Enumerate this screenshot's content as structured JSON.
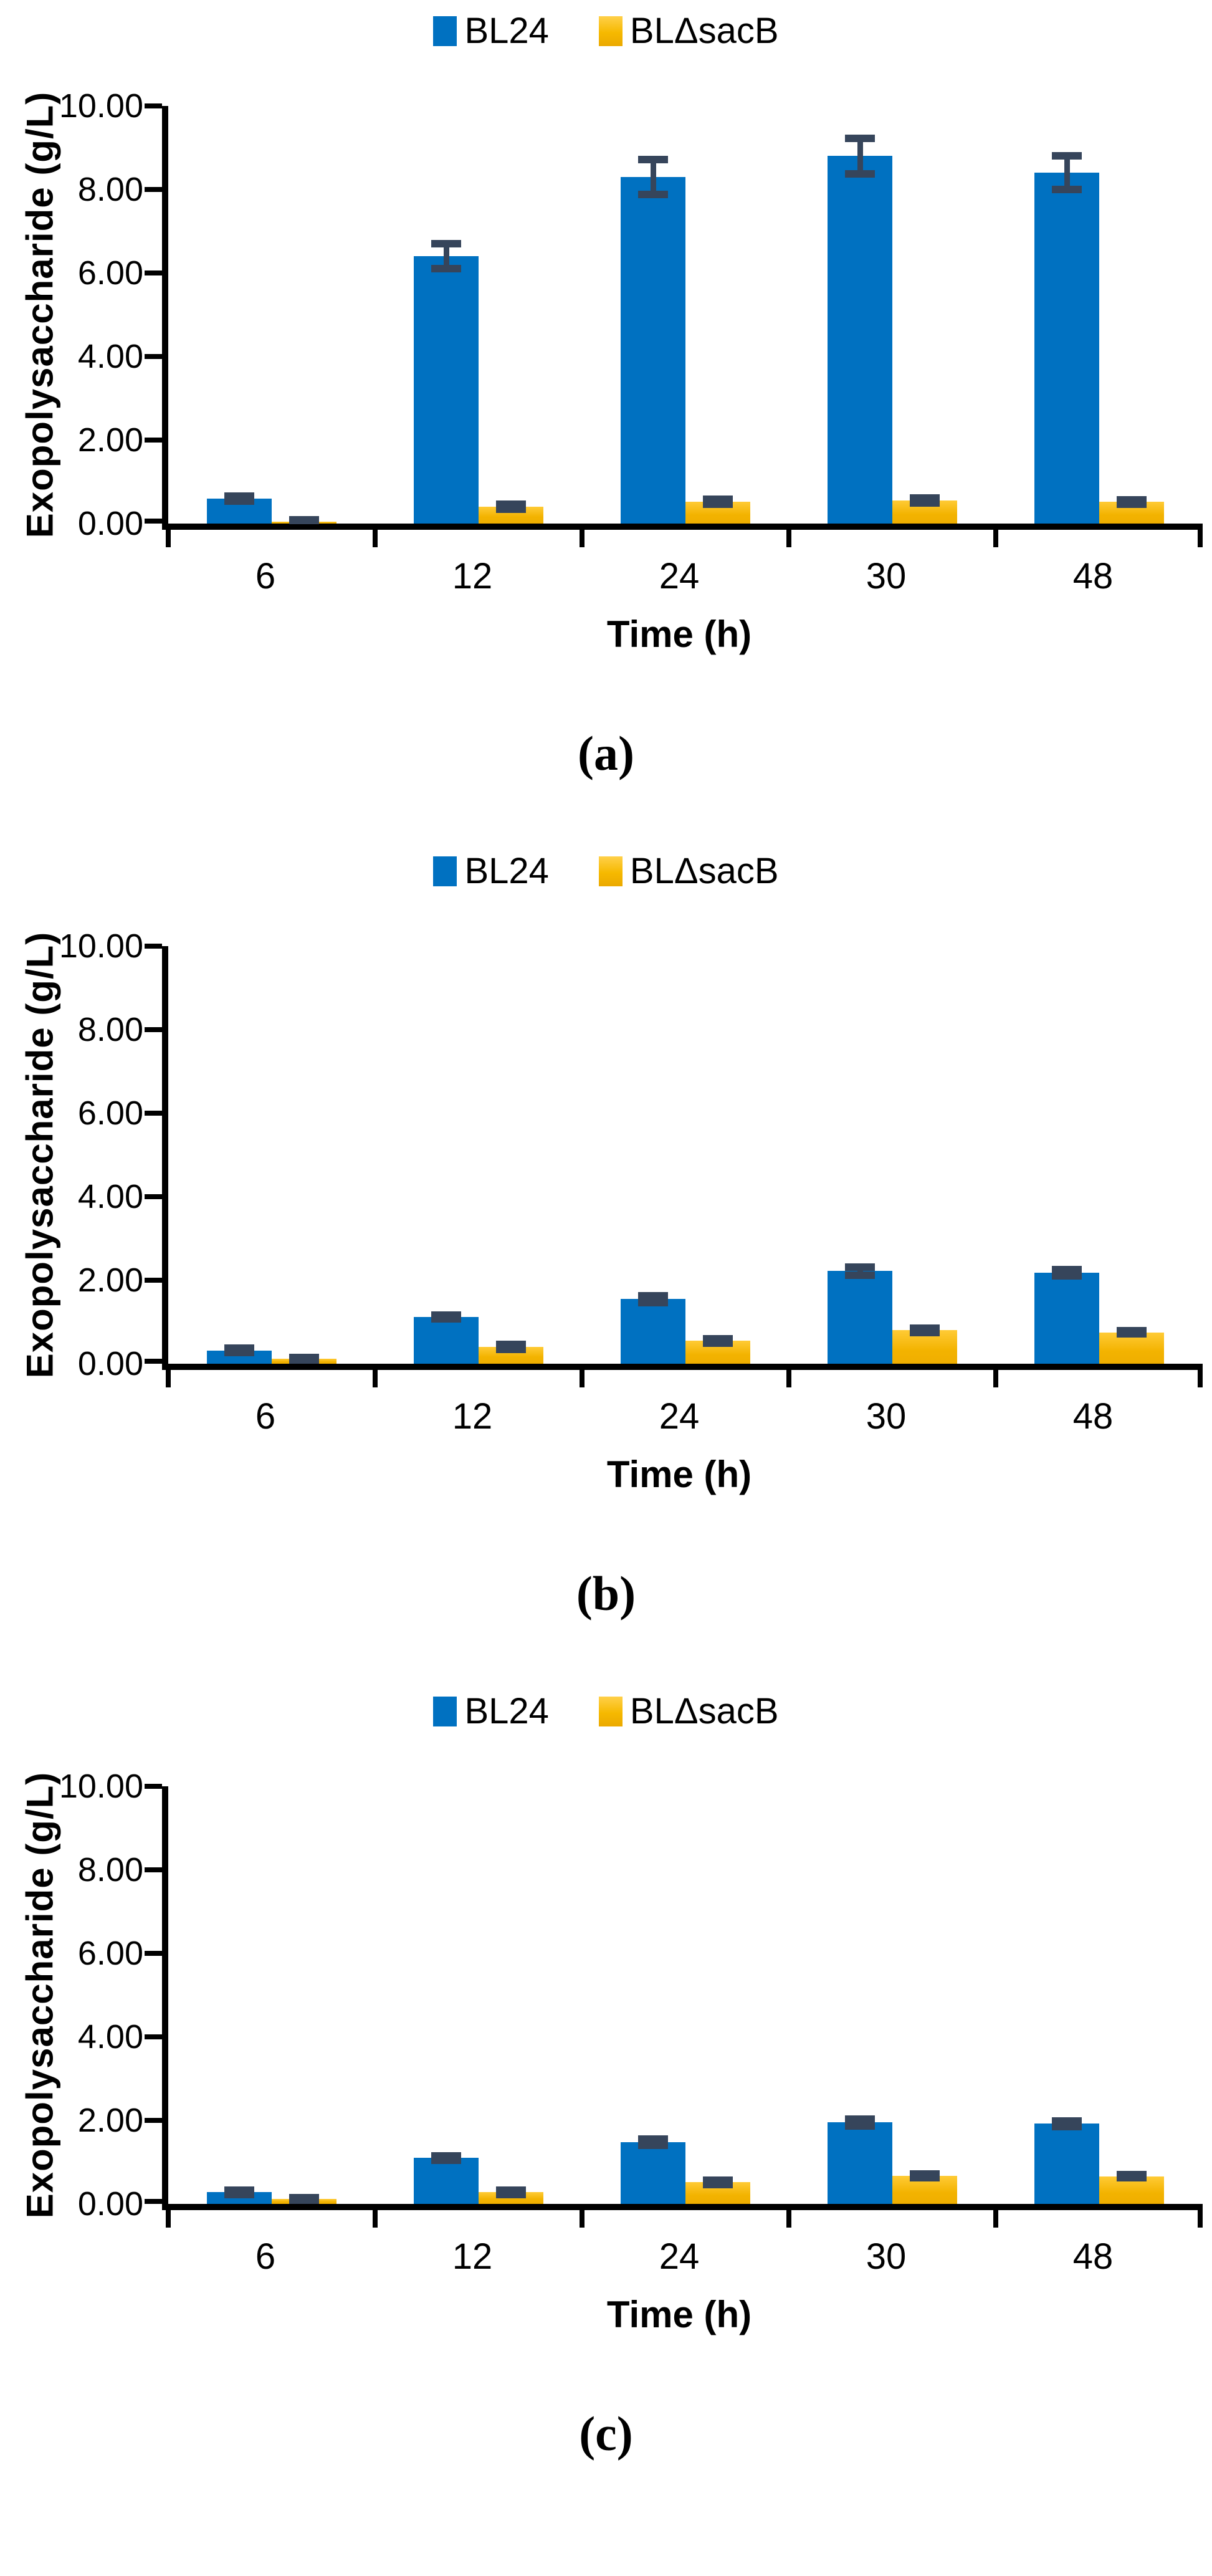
{
  "figure_title": "Exopolysaccharide production of BL24 and BLΔsacB over time (three panels)",
  "colors": {
    "bl24_blue": "#0071C1",
    "sacb_yellow_top": "#FFCB36",
    "sacb_yellow_bottom": "#EFAE00",
    "error_bar": "#36455B",
    "axis": "#000000",
    "background": "#FFFFFF"
  },
  "chart_data": [
    {
      "id": "a",
      "type": "bar",
      "caption": "(a)",
      "xlabel": "Time (h)",
      "ylabel": "Exopolysaccharide (g/L)",
      "categories": [
        "6",
        "12",
        "24",
        "30",
        "48"
      ],
      "y_ticks": [
        "10.00",
        "8.00",
        "6.00",
        "4.00",
        "2.00",
        "0.00"
      ],
      "ylim": [
        0,
        10
      ],
      "grid": false,
      "legend_position": "top-center",
      "series": [
        {
          "name": "BL24",
          "values": [
            0.6,
            6.4,
            8.3,
            8.8,
            8.4
          ],
          "errors": [
            0.06,
            0.3,
            0.42,
            0.42,
            0.4
          ]
        },
        {
          "name": "BLΔsacB",
          "values": [
            0.04,
            0.4,
            0.52,
            0.55,
            0.52
          ],
          "errors": [
            0.04,
            0.06,
            0.06,
            0.06,
            0.05
          ]
        }
      ]
    },
    {
      "id": "b",
      "type": "bar",
      "caption": "(b)",
      "xlabel": "Time (h)",
      "ylabel": "Exopolysaccharide (g/L)",
      "categories": [
        "6",
        "12",
        "24",
        "30",
        "48"
      ],
      "y_ticks": [
        "10.00",
        "8.00",
        "6.00",
        "4.00",
        "2.00",
        "0.00"
      ],
      "ylim": [
        0,
        10
      ],
      "grid": false,
      "legend_position": "top-center",
      "series": [
        {
          "name": "BL24",
          "values": [
            0.32,
            1.12,
            1.55,
            2.22,
            2.18
          ],
          "errors": [
            0.05,
            0.05,
            0.08,
            0.1,
            0.08
          ]
        },
        {
          "name": "BLΔsacB",
          "values": [
            0.12,
            0.4,
            0.55,
            0.8,
            0.75
          ],
          "errors": [
            0.03,
            0.06,
            0.05,
            0.05,
            0.04
          ]
        }
      ]
    },
    {
      "id": "c",
      "type": "bar",
      "caption": "(c)",
      "xlabel": "Time (h)",
      "ylabel": "Exopolysaccharide (g/L)",
      "categories": [
        "6",
        "12",
        "24",
        "30",
        "48"
      ],
      "y_ticks": [
        "10.00",
        "8.00",
        "6.00",
        "4.00",
        "2.00",
        "0.00"
      ],
      "ylim": [
        0,
        10
      ],
      "grid": false,
      "legend_position": "top-center",
      "series": [
        {
          "name": "BL24",
          "values": [
            0.28,
            1.1,
            1.48,
            1.95,
            1.92
          ],
          "errors": [
            0.05,
            0.05,
            0.07,
            0.08,
            0.07
          ]
        },
        {
          "name": "BLΔsacB",
          "values": [
            0.12,
            0.28,
            0.52,
            0.67,
            0.66
          ],
          "errors": [
            0.03,
            0.05,
            0.05,
            0.04,
            0.04
          ]
        }
      ]
    }
  ]
}
